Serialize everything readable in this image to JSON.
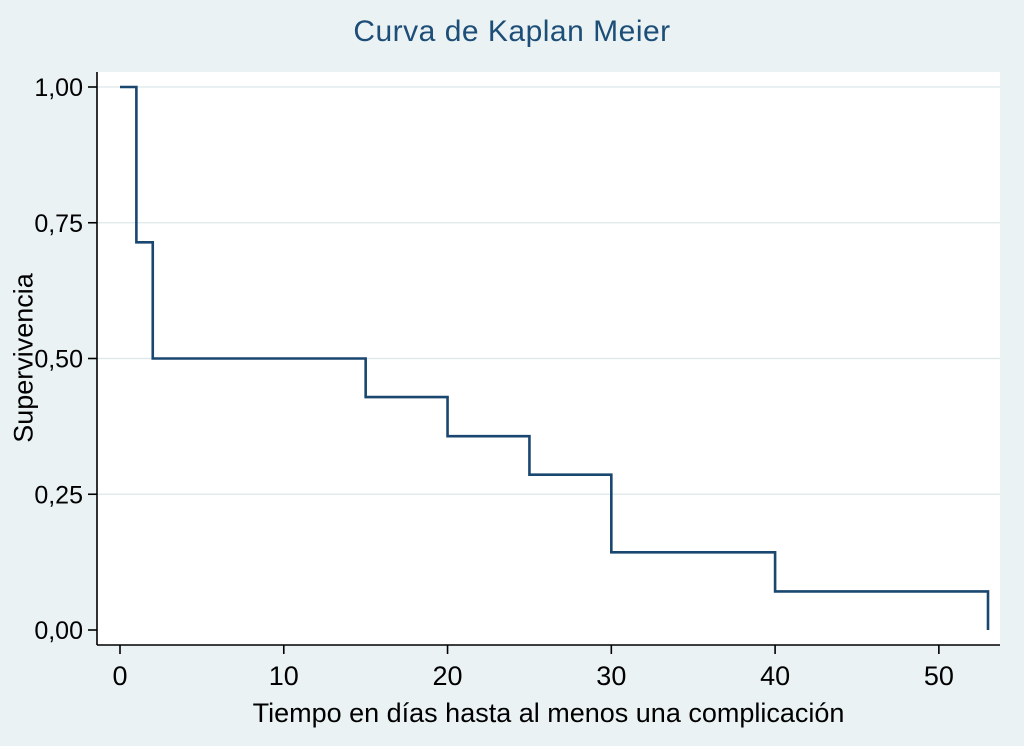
{
  "chart_data": {
    "type": "line",
    "variant": "kaplan-meier-step",
    "title": "Curva de Kaplan Meier",
    "xlabel": "Tiempo en días hasta al menos una complicación",
    "ylabel": "Supervivencia",
    "xlim": [
      0,
      53
    ],
    "ylim": [
      0,
      1
    ],
    "grid": "horizontal",
    "legend": "none",
    "xticks": [
      {
        "v": 0,
        "label": "0"
      },
      {
        "v": 10,
        "label": "10"
      },
      {
        "v": 20,
        "label": "20"
      },
      {
        "v": 30,
        "label": "30"
      },
      {
        "v": 40,
        "label": "40"
      },
      {
        "v": 50,
        "label": "50"
      }
    ],
    "yticks": [
      {
        "v": 0.0,
        "label": "0,00"
      },
      {
        "v": 0.25,
        "label": "0,25"
      },
      {
        "v": 0.5,
        "label": "0,50"
      },
      {
        "v": 0.75,
        "label": "0,75"
      },
      {
        "v": 1.0,
        "label": "1,00"
      }
    ],
    "survival_steps": [
      {
        "time": 0,
        "survival": 1.0
      },
      {
        "time": 1,
        "survival": 0.714
      },
      {
        "time": 2,
        "survival": 0.5
      },
      {
        "time": 15,
        "survival": 0.429
      },
      {
        "time": 20,
        "survival": 0.357
      },
      {
        "time": 25,
        "survival": 0.286
      },
      {
        "time": 30,
        "survival": 0.143
      },
      {
        "time": 40,
        "survival": 0.071
      },
      {
        "time": 53,
        "survival": 0.0
      }
    ],
    "colors": {
      "line": "#1a476f",
      "title": "#1d4e77",
      "background": "#eaf2f3",
      "plot_background": "#ffffff",
      "grid": "#dce8ea",
      "axis": "#000000",
      "tick_text": "#000000"
    }
  }
}
